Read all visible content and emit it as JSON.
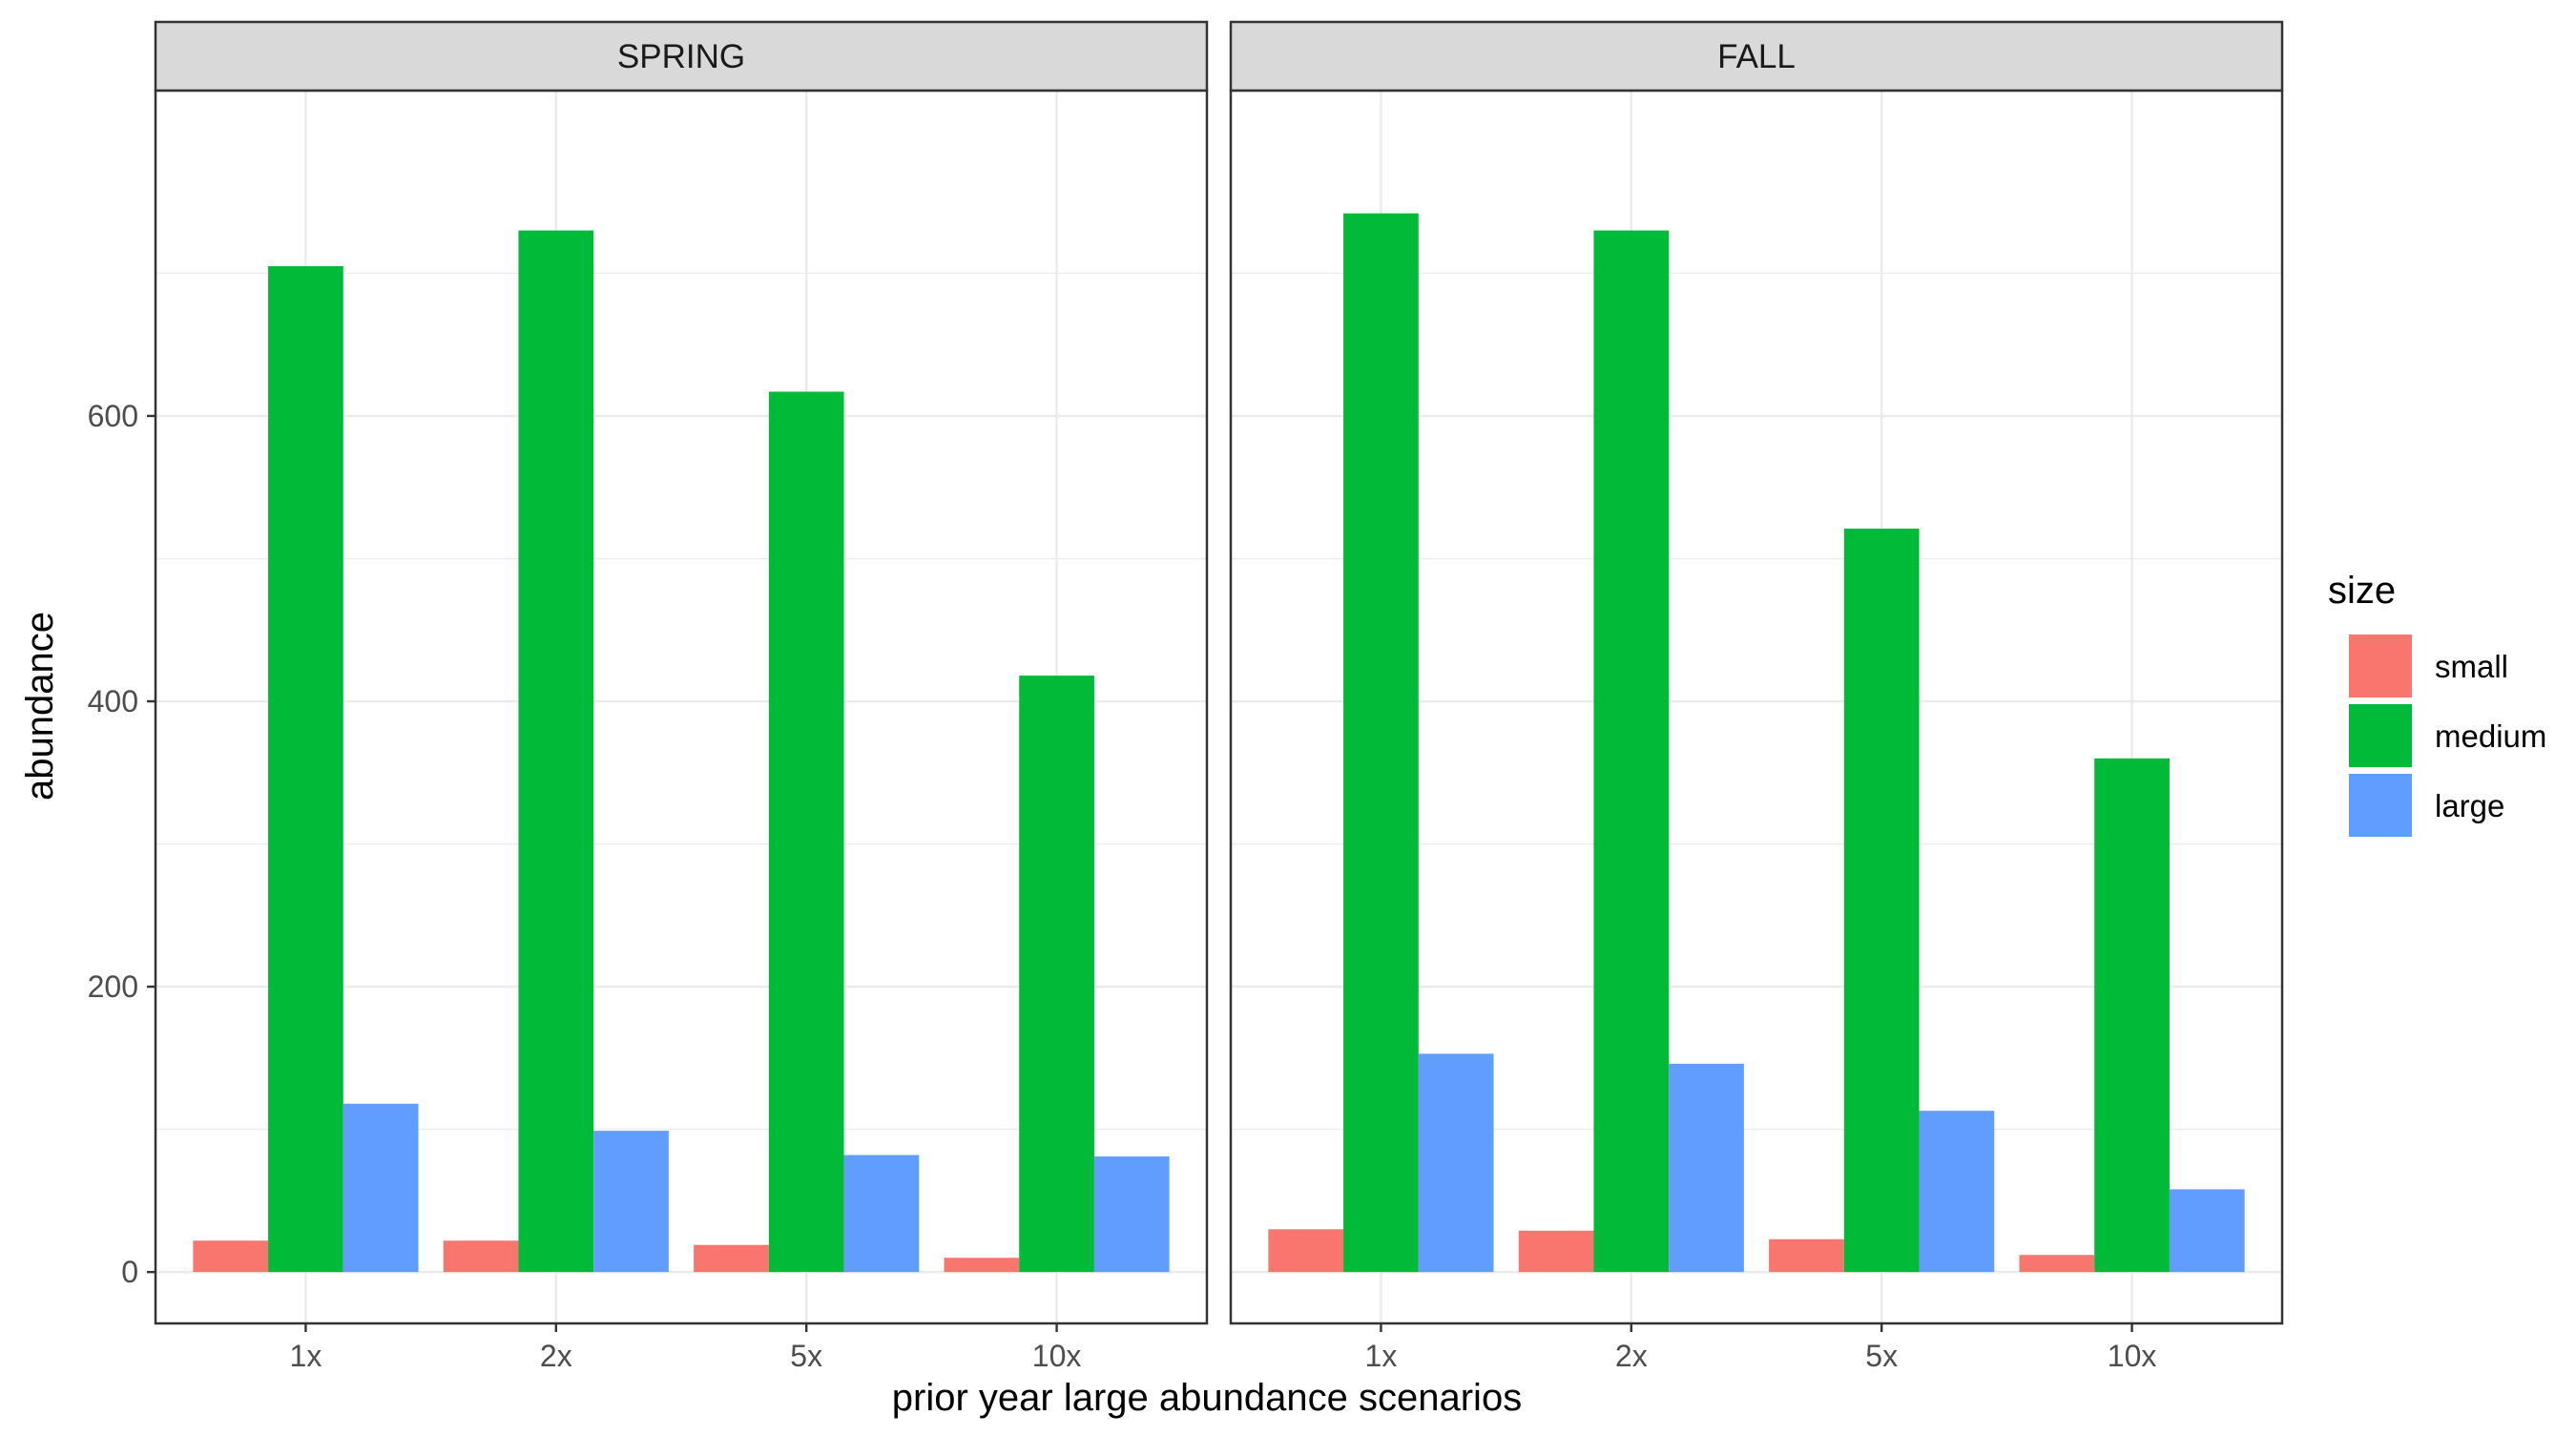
{
  "chart_data": {
    "type": "bar",
    "facets": [
      "SPRING",
      "FALL"
    ],
    "categories": [
      "1x",
      "2x",
      "5x",
      "10x"
    ],
    "series": [
      {
        "name": "small",
        "color": "#F8766D",
        "values": {
          "SPRING": [
            22,
            22,
            19,
            10
          ],
          "FALL": [
            30,
            29,
            23,
            12
          ]
        }
      },
      {
        "name": "medium",
        "color": "#00BA38",
        "values": {
          "SPRING": [
            705,
            730,
            617,
            418
          ],
          "FALL": [
            742,
            730,
            521,
            360
          ]
        }
      },
      {
        "name": "large",
        "color": "#619CFF",
        "values": {
          "SPRING": [
            118,
            99,
            82,
            81
          ],
          "FALL": [
            153,
            146,
            113,
            58
          ]
        }
      }
    ],
    "xlabel": "prior year large abundance scenarios",
    "ylabel": "abundance",
    "ylim": [
      -36,
      828
    ],
    "yticks": [
      0,
      200,
      400,
      600
    ],
    "legend": {
      "title": "size",
      "position": "right"
    },
    "grid": true
  }
}
